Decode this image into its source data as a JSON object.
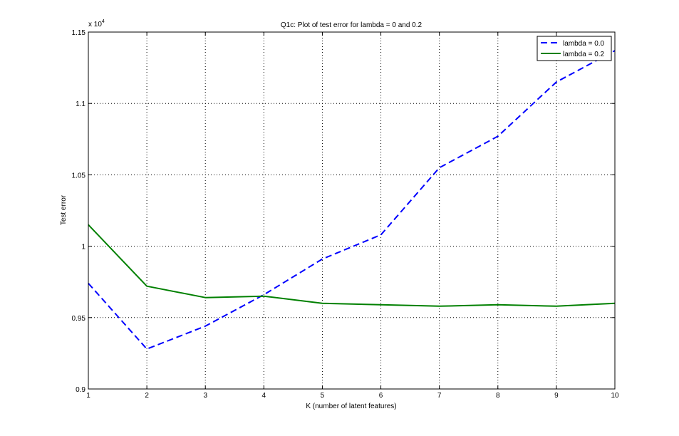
{
  "chart_data": {
    "type": "line",
    "title": "Q1c: Plot of test error for lambda = 0 and 0.2",
    "xlabel": "K (number of latent features)",
    "ylabel": "Test error",
    "scale_note": "x 10",
    "scale_exponent": "4",
    "xlim": [
      1,
      10
    ],
    "ylim": [
      0.9,
      1.15
    ],
    "xticks": [
      1,
      2,
      3,
      4,
      5,
      6,
      7,
      8,
      9,
      10
    ],
    "yticks": [
      0.9,
      0.95,
      1,
      1.05,
      1.1,
      1.15
    ],
    "ytick_labels": [
      "0.9",
      "0.95",
      "1",
      "1.05",
      "1.1",
      "1.15"
    ],
    "grid": true,
    "legend_position": "top-right",
    "x": [
      1,
      2,
      3,
      4,
      5,
      6,
      7,
      8,
      9,
      10
    ],
    "series": [
      {
        "name": "lambda = 0.0",
        "color": "#0000ff",
        "style": "dashed",
        "values": [
          0.974,
          0.928,
          0.944,
          0.966,
          0.991,
          1.008,
          1.055,
          1.077,
          1.115,
          1.137
        ]
      },
      {
        "name": "lambda = 0.2",
        "color": "#008000",
        "style": "solid",
        "values": [
          1.015,
          0.972,
          0.964,
          0.965,
          0.96,
          0.959,
          0.958,
          0.959,
          0.958,
          0.96
        ]
      }
    ]
  }
}
